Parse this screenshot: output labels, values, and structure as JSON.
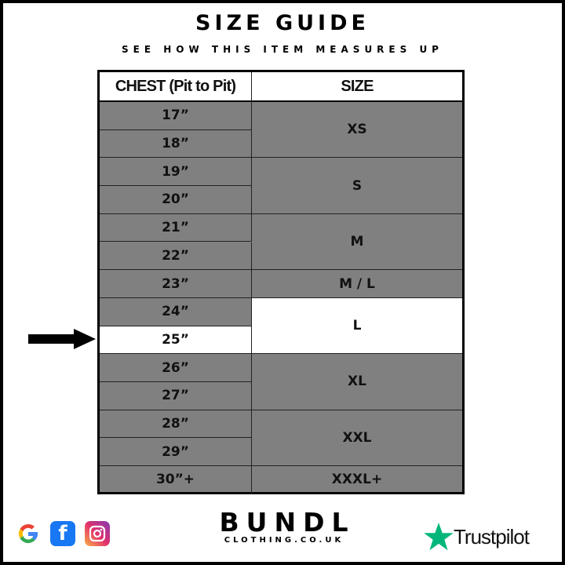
{
  "header": {
    "title": "SIZE GUIDE",
    "subtitle": "SEE HOW THIS ITEM MEASURES UP"
  },
  "table": {
    "columns": [
      "CHEST (Pit to Pit)",
      "SIZE"
    ],
    "chest": [
      "17”",
      "18”",
      "19”",
      "20”",
      "21”",
      "22”",
      "23”",
      "24”",
      "25”",
      "26”",
      "27”",
      "28”",
      "29”",
      "30”+"
    ],
    "sizes": [
      "XS",
      "S",
      "M",
      "M / L",
      "L",
      "XL",
      "XXL",
      "XXXL+"
    ],
    "highlighted_chest": "25”",
    "highlighted_size": "L",
    "row_color": "#808080",
    "highlight_color": "#ffffff"
  },
  "footer": {
    "brand": "BUNDL",
    "brand_sub": "CLOTHING.CO.UK",
    "trustpilot": "Trustpilot",
    "social_icons": [
      "google-icon",
      "facebook-icon",
      "instagram-icon"
    ],
    "trustpilot_color": "#00b67a"
  }
}
